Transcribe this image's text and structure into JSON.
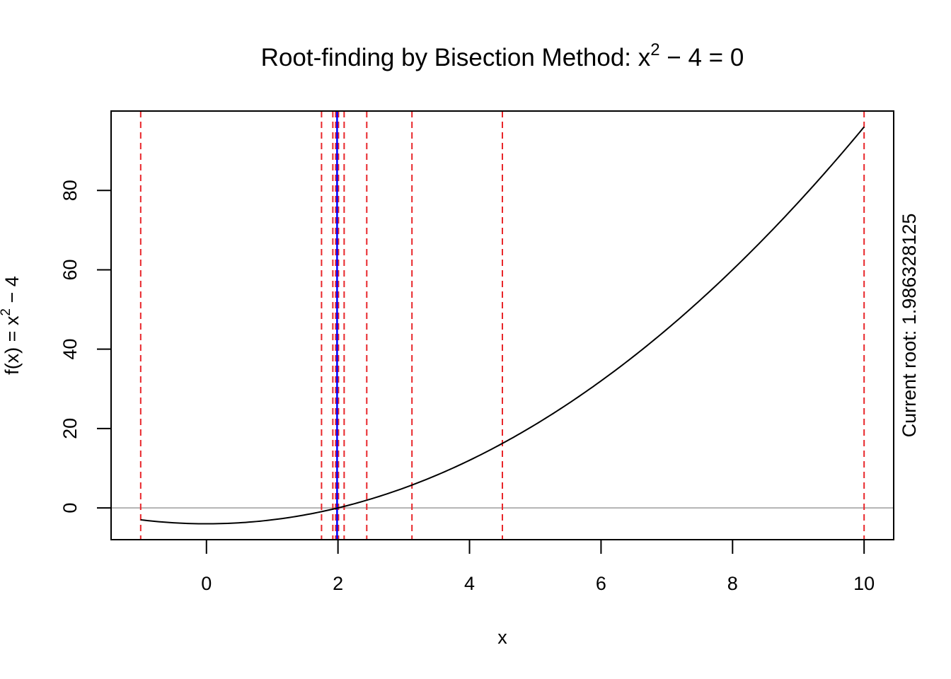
{
  "chart_data": {
    "type": "line",
    "title": {
      "prefix": "Root-finding by Bisection Method: x",
      "exponent": "2",
      "suffix": " − 4 = 0"
    },
    "xlabel": "x",
    "ylabel": {
      "prefix": "f(x) = x",
      "exponent": "2",
      "suffix": " − 4"
    },
    "right_label": "Current root: 1.986328125",
    "xlim": [
      -1.45,
      10.45
    ],
    "ylim": [
      -8,
      100
    ],
    "x_ticks": [
      0,
      2,
      4,
      6,
      8,
      10
    ],
    "x_tick_labels": [
      "0",
      "2",
      "4",
      "6",
      "8",
      "10"
    ],
    "y_ticks": [
      0,
      20,
      40,
      60,
      80
    ],
    "y_tick_labels": [
      "0",
      "20",
      "40",
      "60",
      "80"
    ],
    "function": {
      "name": "x^2 - 4",
      "x_from": -1,
      "x_to": 10,
      "color": "#000000"
    },
    "zero_line": {
      "y": 0,
      "color": "#b3b3b3"
    },
    "bisection_lines": {
      "color": "#e8262a",
      "style": "dashed",
      "x": [
        -1,
        10,
        4.5,
        1.75,
        3.125,
        2.4375,
        2.09375,
        1.921875,
        2.0078125,
        1.96484375,
        1.986328125,
        1.9970703125,
        1.99169921875,
        1.994384765625
      ]
    },
    "root_line": {
      "x": 1.986328125,
      "color": "#0000ff"
    }
  }
}
